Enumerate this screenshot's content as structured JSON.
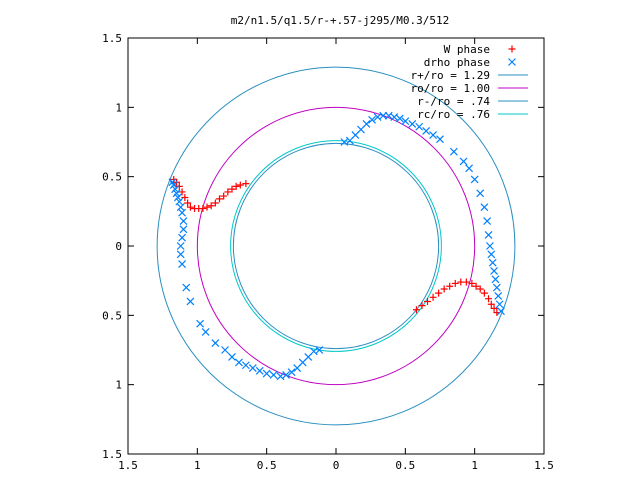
{
  "chart_data": {
    "type": "scatter",
    "title": "m2/n1.5/q1.5/r-+.57-j295/M0.3/512",
    "xlabel": "",
    "ylabel": "",
    "xlim": [
      -1.5,
      1.5
    ],
    "ylim": [
      -1.5,
      1.5
    ],
    "x_tick_values": [
      -1.5,
      -1,
      -0.5,
      0,
      0.5,
      1,
      1.5
    ],
    "x_tick_labels": [
      "1.5",
      "1",
      "0.5",
      "0",
      "0.5",
      "1",
      "1.5"
    ],
    "y_tick_values": [
      1.5,
      1,
      0.5,
      0,
      -0.5,
      -1,
      -1.5
    ],
    "y_tick_labels": [
      "1.5",
      "1",
      "0.5",
      "0",
      "0.5",
      "1",
      "1.5"
    ],
    "grid": false,
    "legend_position": "top-right",
    "legend": [
      {
        "label": "W phase",
        "marker": "plus",
        "color": "#ff0000"
      },
      {
        "label": "drho phase",
        "marker": "cross",
        "color": "#0080ff"
      },
      {
        "label": "r+/ro = 1.29",
        "line": true,
        "color": "#2a8fc0"
      },
      {
        "label": "ro/ro = 1.00",
        "line": true,
        "color": "#c000c0"
      },
      {
        "label": "r-/ro = .74",
        "line": true,
        "color": "#2a8fc0"
      },
      {
        "label": "rc/ro = .76",
        "line": true,
        "color": "#00c8c8"
      }
    ],
    "circles": [
      {
        "name": "r+/ro = 1.29",
        "radius": 1.29,
        "color": "#2a8fc0"
      },
      {
        "name": "ro/ro = 1.00",
        "radius": 1.0,
        "color": "#c000c0"
      },
      {
        "name": "r-/ro = .74",
        "radius": 0.74,
        "color": "#2a8fc0"
      },
      {
        "name": "rc/ro = .76",
        "radius": 0.76,
        "color": "#00c8c8"
      }
    ],
    "series": [
      {
        "name": "W phase",
        "marker": "plus",
        "color": "#ff0000",
        "points": [
          [
            -1.17,
            0.48
          ],
          [
            -1.15,
            0.46
          ],
          [
            -1.13,
            0.43
          ],
          [
            -1.11,
            0.39
          ],
          [
            -1.09,
            0.35
          ],
          [
            -1.07,
            0.31
          ],
          [
            -1.05,
            0.28
          ],
          [
            -1.02,
            0.27
          ],
          [
            -0.99,
            0.27
          ],
          [
            -0.96,
            0.27
          ],
          [
            -0.93,
            0.28
          ],
          [
            -0.9,
            0.29
          ],
          [
            -0.87,
            0.31
          ],
          [
            -0.84,
            0.34
          ],
          [
            -0.81,
            0.36
          ],
          [
            -0.78,
            0.39
          ],
          [
            -0.75,
            0.41
          ],
          [
            -0.72,
            0.43
          ],
          [
            -0.69,
            0.44
          ],
          [
            -0.65,
            0.45
          ],
          [
            0.58,
            -0.46
          ],
          [
            0.62,
            -0.43
          ],
          [
            0.66,
            -0.4
          ],
          [
            0.7,
            -0.37
          ],
          [
            0.74,
            -0.34
          ],
          [
            0.78,
            -0.31
          ],
          [
            0.82,
            -0.29
          ],
          [
            0.86,
            -0.27
          ],
          [
            0.9,
            -0.26
          ],
          [
            0.94,
            -0.26
          ],
          [
            0.98,
            -0.27
          ],
          [
            1.01,
            -0.29
          ],
          [
            1.04,
            -0.31
          ],
          [
            1.07,
            -0.34
          ],
          [
            1.1,
            -0.38
          ],
          [
            1.12,
            -0.42
          ],
          [
            1.14,
            -0.45
          ],
          [
            1.16,
            -0.48
          ]
        ]
      },
      {
        "name": "drho phase",
        "marker": "cross",
        "color": "#0080ff",
        "points": [
          [
            -1.18,
            0.46
          ],
          [
            -1.17,
            0.44
          ],
          [
            -1.16,
            0.41
          ],
          [
            -1.15,
            0.38
          ],
          [
            -1.14,
            0.35
          ],
          [
            -1.13,
            0.32
          ],
          [
            -1.12,
            0.28
          ],
          [
            -1.11,
            0.24
          ],
          [
            -1.1,
            0.18
          ],
          [
            -1.1,
            0.12
          ],
          [
            -1.11,
            0.06
          ],
          [
            -1.12,
            0.0
          ],
          [
            -1.12,
            -0.06
          ],
          [
            -1.11,
            -0.13
          ],
          [
            -1.08,
            -0.3
          ],
          [
            -1.05,
            -0.4
          ],
          [
            -0.98,
            -0.56
          ],
          [
            -0.94,
            -0.62
          ],
          [
            -0.87,
            -0.7
          ],
          [
            -0.8,
            -0.75
          ],
          [
            -0.75,
            -0.8
          ],
          [
            -0.7,
            -0.84
          ],
          [
            -0.65,
            -0.86
          ],
          [
            -0.6,
            -0.88
          ],
          [
            -0.55,
            -0.9
          ],
          [
            -0.5,
            -0.92
          ],
          [
            -0.45,
            -0.93
          ],
          [
            -0.4,
            -0.94
          ],
          [
            -0.36,
            -0.93
          ],
          [
            -0.32,
            -0.91
          ],
          [
            -0.28,
            -0.88
          ],
          [
            -0.24,
            -0.84
          ],
          [
            -0.2,
            -0.8
          ],
          [
            -0.16,
            -0.76
          ],
          [
            -0.12,
            -0.75
          ],
          [
            0.06,
            0.75
          ],
          [
            0.1,
            0.76
          ],
          [
            0.14,
            0.8
          ],
          [
            0.18,
            0.84
          ],
          [
            0.22,
            0.88
          ],
          [
            0.26,
            0.91
          ],
          [
            0.3,
            0.93
          ],
          [
            0.34,
            0.94
          ],
          [
            0.38,
            0.94
          ],
          [
            0.42,
            0.93
          ],
          [
            0.46,
            0.92
          ],
          [
            0.5,
            0.9
          ],
          [
            0.55,
            0.88
          ],
          [
            0.6,
            0.86
          ],
          [
            0.65,
            0.83
          ],
          [
            0.7,
            0.8
          ],
          [
            0.75,
            0.77
          ],
          [
            0.85,
            0.68
          ],
          [
            0.92,
            0.61
          ],
          [
            0.96,
            0.56
          ],
          [
            1.0,
            0.48
          ],
          [
            1.04,
            0.38
          ],
          [
            1.07,
            0.28
          ],
          [
            1.09,
            0.18
          ],
          [
            1.1,
            0.08
          ],
          [
            1.11,
            0.0
          ],
          [
            1.12,
            -0.06
          ],
          [
            1.13,
            -0.12
          ],
          [
            1.14,
            -0.18
          ],
          [
            1.15,
            -0.24
          ],
          [
            1.16,
            -0.3
          ],
          [
            1.17,
            -0.36
          ],
          [
            1.18,
            -0.42
          ],
          [
            1.19,
            -0.47
          ]
        ]
      }
    ]
  }
}
